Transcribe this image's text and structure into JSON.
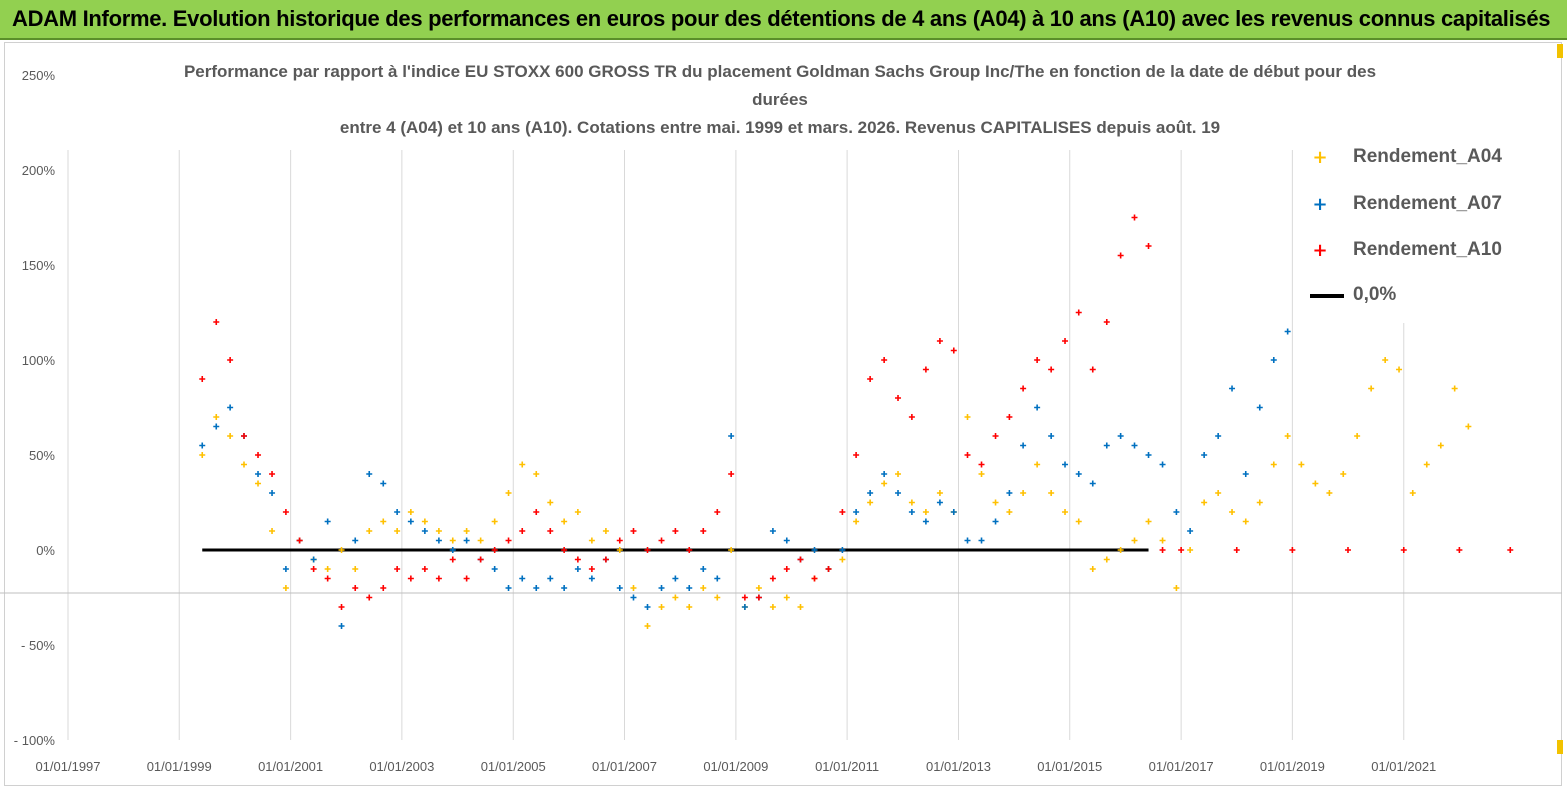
{
  "banner": {
    "title": "ADAM Informe. Evolution historique des performances en euros pour des détentions de 4 ans (A04) à 10 ans (A10) avec les revenus connus capitalisés",
    "color": "#92d050"
  },
  "chart_data": {
    "type": "scatter",
    "title_lines": [
      "Performance par rapport à l'indice EU STOXX 600 GROSS TR  du placement Goldman Sachs Group Inc/The en fonction de la date de début pour des",
      "durées",
      "entre 4 (A04) et 10 ans (A10). Cotations entre mai. 1999 et mars. 2026. Revenus CAPITALISES depuis août. 19"
    ],
    "x_tick_labels": [
      "01/01/1997",
      "01/01/1999",
      "01/01/2001",
      "01/01/2003",
      "01/01/2005",
      "01/01/2007",
      "01/01/2009",
      "01/01/2011",
      "01/01/2013",
      "01/01/2015",
      "01/01/2017",
      "01/01/2019",
      "01/01/2021"
    ],
    "y_tick_labels": [
      "250%",
      "200%",
      "150%",
      "100%",
      "50%",
      "0%",
      "- 50%",
      "- 100%"
    ],
    "xlim": [
      "1997-01-01",
      "2023-01-01"
    ],
    "ylim": [
      -100,
      250
    ],
    "y_unit": "%",
    "grid": "vertical",
    "legend_position": "right",
    "series": [
      {
        "name": "Rendement_A04",
        "color": "#ffc000",
        "marker": "+",
        "points": [
          [
            "1999-06-01",
            50
          ],
          [
            "1999-09-01",
            70
          ],
          [
            "1999-12-01",
            60
          ],
          [
            "2000-03-01",
            45
          ],
          [
            "2000-06-01",
            35
          ],
          [
            "2000-09-01",
            10
          ],
          [
            "2000-12-01",
            -20
          ],
          [
            "2001-03-01",
            5
          ],
          [
            "2001-06-01",
            -5
          ],
          [
            "2001-09-01",
            -10
          ],
          [
            "2001-12-01",
            0
          ],
          [
            "2002-03-01",
            -10
          ],
          [
            "2002-06-01",
            10
          ],
          [
            "2002-09-01",
            15
          ],
          [
            "2002-12-01",
            10
          ],
          [
            "2003-03-01",
            20
          ],
          [
            "2003-06-01",
            15
          ],
          [
            "2003-09-01",
            10
          ],
          [
            "2003-12-01",
            5
          ],
          [
            "2004-03-01",
            10
          ],
          [
            "2004-06-01",
            5
          ],
          [
            "2004-09-01",
            15
          ],
          [
            "2004-12-01",
            30
          ],
          [
            "2005-03-01",
            45
          ],
          [
            "2005-06-01",
            40
          ],
          [
            "2005-09-01",
            25
          ],
          [
            "2005-12-01",
            15
          ],
          [
            "2006-03-01",
            20
          ],
          [
            "2006-06-01",
            5
          ],
          [
            "2006-09-01",
            10
          ],
          [
            "2006-12-01",
            0
          ],
          [
            "2007-03-01",
            -20
          ],
          [
            "2007-06-01",
            -40
          ],
          [
            "2007-09-01",
            -30
          ],
          [
            "2007-12-01",
            -25
          ],
          [
            "2008-03-01",
            -30
          ],
          [
            "2008-06-01",
            -20
          ],
          [
            "2008-09-01",
            -25
          ],
          [
            "2008-12-01",
            0
          ],
          [
            "2009-03-01",
            -30
          ],
          [
            "2009-06-01",
            -20
          ],
          [
            "2009-09-01",
            -30
          ],
          [
            "2009-12-01",
            -25
          ],
          [
            "2010-03-01",
            -30
          ],
          [
            "2010-06-01",
            -15
          ],
          [
            "2010-09-01",
            -10
          ],
          [
            "2010-12-01",
            -5
          ],
          [
            "2011-03-01",
            15
          ],
          [
            "2011-06-01",
            25
          ],
          [
            "2011-09-01",
            35
          ],
          [
            "2011-12-01",
            40
          ],
          [
            "2012-03-01",
            25
          ],
          [
            "2012-06-01",
            20
          ],
          [
            "2012-09-01",
            30
          ],
          [
            "2012-12-01",
            20
          ],
          [
            "2013-03-01",
            70
          ],
          [
            "2013-06-01",
            40
          ],
          [
            "2013-09-01",
            25
          ],
          [
            "2013-12-01",
            20
          ],
          [
            "2014-03-01",
            30
          ],
          [
            "2014-06-01",
            45
          ],
          [
            "2014-09-01",
            30
          ],
          [
            "2014-12-01",
            20
          ],
          [
            "2015-03-01",
            15
          ],
          [
            "2015-06-01",
            -10
          ],
          [
            "2015-09-01",
            -5
          ],
          [
            "2015-12-01",
            0
          ],
          [
            "2016-03-01",
            5
          ],
          [
            "2016-06-01",
            15
          ],
          [
            "2016-09-01",
            5
          ],
          [
            "2016-12-01",
            -20
          ],
          [
            "2017-03-01",
            0
          ],
          [
            "2017-06-01",
            25
          ],
          [
            "2017-09-01",
            30
          ],
          [
            "2017-12-01",
            20
          ],
          [
            "2018-03-01",
            15
          ],
          [
            "2018-06-01",
            25
          ],
          [
            "2018-09-01",
            45
          ],
          [
            "2018-12-01",
            60
          ],
          [
            "2019-03-01",
            45
          ],
          [
            "2019-06-01",
            35
          ],
          [
            "2019-09-01",
            30
          ],
          [
            "2019-12-01",
            40
          ],
          [
            "2020-03-01",
            60
          ],
          [
            "2020-06-01",
            85
          ],
          [
            "2020-09-01",
            100
          ],
          [
            "2020-12-01",
            95
          ],
          [
            "2021-03-01",
            30
          ],
          [
            "2021-06-01",
            45
          ],
          [
            "2021-09-01",
            55
          ],
          [
            "2021-12-01",
            85
          ],
          [
            "2022-03-01",
            65
          ]
        ]
      },
      {
        "name": "Rendement_A07",
        "color": "#0070c0",
        "marker": "+",
        "points": [
          [
            "1999-06-01",
            55
          ],
          [
            "1999-09-01",
            65
          ],
          [
            "1999-12-01",
            75
          ],
          [
            "2000-03-01",
            60
          ],
          [
            "2000-06-01",
            40
          ],
          [
            "2000-09-01",
            30
          ],
          [
            "2000-12-01",
            -10
          ],
          [
            "2001-03-01",
            5
          ],
          [
            "2001-06-01",
            -5
          ],
          [
            "2001-09-01",
            15
          ],
          [
            "2001-12-01",
            -40
          ],
          [
            "2002-03-01",
            5
          ],
          [
            "2002-06-01",
            40
          ],
          [
            "2002-09-01",
            35
          ],
          [
            "2002-12-01",
            20
          ],
          [
            "2003-03-01",
            15
          ],
          [
            "2003-06-01",
            10
          ],
          [
            "2003-09-01",
            5
          ],
          [
            "2003-12-01",
            0
          ],
          [
            "2004-03-01",
            5
          ],
          [
            "2004-06-01",
            -5
          ],
          [
            "2004-09-01",
            -10
          ],
          [
            "2004-12-01",
            -20
          ],
          [
            "2005-03-01",
            -15
          ],
          [
            "2005-06-01",
            -20
          ],
          [
            "2005-09-01",
            -15
          ],
          [
            "2005-12-01",
            -20
          ],
          [
            "2006-03-01",
            -10
          ],
          [
            "2006-06-01",
            -15
          ],
          [
            "2006-09-01",
            -5
          ],
          [
            "2006-12-01",
            -20
          ],
          [
            "2007-03-01",
            -25
          ],
          [
            "2007-06-01",
            -30
          ],
          [
            "2007-09-01",
            -20
          ],
          [
            "2007-12-01",
            -15
          ],
          [
            "2008-03-01",
            -20
          ],
          [
            "2008-06-01",
            -10
          ],
          [
            "2008-09-01",
            -15
          ],
          [
            "2008-12-01",
            60
          ],
          [
            "2009-03-01",
            -30
          ],
          [
            "2009-06-01",
            -25
          ],
          [
            "2009-09-01",
            10
          ],
          [
            "2009-12-01",
            5
          ],
          [
            "2010-03-01",
            -5
          ],
          [
            "2010-06-01",
            0
          ],
          [
            "2010-09-01",
            -10
          ],
          [
            "2010-12-01",
            0
          ],
          [
            "2011-03-01",
            20
          ],
          [
            "2011-06-01",
            30
          ],
          [
            "2011-09-01",
            40
          ],
          [
            "2011-12-01",
            30
          ],
          [
            "2012-03-01",
            20
          ],
          [
            "2012-06-01",
            15
          ],
          [
            "2012-09-01",
            25
          ],
          [
            "2012-12-01",
            20
          ],
          [
            "2013-03-01",
            5
          ],
          [
            "2013-06-01",
            5
          ],
          [
            "2013-09-01",
            15
          ],
          [
            "2013-12-01",
            30
          ],
          [
            "2014-03-01",
            55
          ],
          [
            "2014-06-01",
            75
          ],
          [
            "2014-09-01",
            60
          ],
          [
            "2014-12-01",
            45
          ],
          [
            "2015-03-01",
            40
          ],
          [
            "2015-06-01",
            35
          ],
          [
            "2015-09-01",
            55
          ],
          [
            "2015-12-01",
            60
          ],
          [
            "2016-03-01",
            55
          ],
          [
            "2016-06-01",
            50
          ],
          [
            "2016-09-01",
            45
          ],
          [
            "2016-12-01",
            20
          ],
          [
            "2017-03-01",
            10
          ],
          [
            "2017-06-01",
            50
          ],
          [
            "2017-09-01",
            60
          ],
          [
            "2017-12-01",
            85
          ],
          [
            "2018-03-01",
            40
          ],
          [
            "2018-06-01",
            75
          ],
          [
            "2018-09-01",
            100
          ],
          [
            "2018-12-01",
            115
          ]
        ]
      },
      {
        "name": "Rendement_A10",
        "color": "#ff0000",
        "marker": "+",
        "points": [
          [
            "1999-06-01",
            90
          ],
          [
            "1999-09-01",
            120
          ],
          [
            "1999-12-01",
            100
          ],
          [
            "2000-03-01",
            60
          ],
          [
            "2000-06-01",
            50
          ],
          [
            "2000-09-01",
            40
          ],
          [
            "2000-12-01",
            20
          ],
          [
            "2001-03-01",
            5
          ],
          [
            "2001-06-01",
            -10
          ],
          [
            "2001-09-01",
            -15
          ],
          [
            "2001-12-01",
            -30
          ],
          [
            "2002-03-01",
            -20
          ],
          [
            "2002-06-01",
            -25
          ],
          [
            "2002-09-01",
            -20
          ],
          [
            "2002-12-01",
            -10
          ],
          [
            "2003-03-01",
            -15
          ],
          [
            "2003-06-01",
            -10
          ],
          [
            "2003-09-01",
            -15
          ],
          [
            "2003-12-01",
            -5
          ],
          [
            "2004-03-01",
            -15
          ],
          [
            "2004-06-01",
            -5
          ],
          [
            "2004-09-01",
            0
          ],
          [
            "2004-12-01",
            5
          ],
          [
            "2005-03-01",
            10
          ],
          [
            "2005-06-01",
            20
          ],
          [
            "2005-09-01",
            10
          ],
          [
            "2005-12-01",
            0
          ],
          [
            "2006-03-01",
            -5
          ],
          [
            "2006-06-01",
            -10
          ],
          [
            "2006-09-01",
            -5
          ],
          [
            "2006-12-01",
            5
          ],
          [
            "2007-03-01",
            10
          ],
          [
            "2007-06-01",
            0
          ],
          [
            "2007-09-01",
            5
          ],
          [
            "2007-12-01",
            10
          ],
          [
            "2008-03-01",
            0
          ],
          [
            "2008-06-01",
            10
          ],
          [
            "2008-09-01",
            20
          ],
          [
            "2008-12-01",
            40
          ],
          [
            "2009-03-01",
            -25
          ],
          [
            "2009-06-01",
            -25
          ],
          [
            "2009-09-01",
            -15
          ],
          [
            "2009-12-01",
            -10
          ],
          [
            "2010-03-01",
            -5
          ],
          [
            "2010-06-01",
            -15
          ],
          [
            "2010-09-01",
            -10
          ],
          [
            "2010-12-01",
            20
          ],
          [
            "2011-03-01",
            50
          ],
          [
            "2011-06-01",
            90
          ],
          [
            "2011-09-01",
            100
          ],
          [
            "2011-12-01",
            80
          ],
          [
            "2012-03-01",
            70
          ],
          [
            "2012-06-01",
            95
          ],
          [
            "2012-09-01",
            110
          ],
          [
            "2012-12-01",
            105
          ],
          [
            "2013-03-01",
            50
          ],
          [
            "2013-06-01",
            45
          ],
          [
            "2013-09-01",
            60
          ],
          [
            "2013-12-01",
            70
          ],
          [
            "2014-03-01",
            85
          ],
          [
            "2014-06-01",
            100
          ],
          [
            "2014-09-01",
            95
          ],
          [
            "2014-12-01",
            110
          ],
          [
            "2015-03-01",
            125
          ],
          [
            "2015-06-01",
            95
          ],
          [
            "2015-09-01",
            120
          ],
          [
            "2015-12-01",
            155
          ],
          [
            "2016-03-01",
            175
          ],
          [
            "2016-06-01",
            160
          ],
          [
            "2016-09-01",
            0
          ],
          [
            "2017-01-01",
            0
          ],
          [
            "2018-01-01",
            0
          ],
          [
            "2019-01-01",
            0
          ],
          [
            "2020-01-01",
            0
          ],
          [
            "2021-01-01",
            0
          ],
          [
            "2022-01-01",
            0
          ],
          [
            "2022-12-01",
            0
          ]
        ]
      }
    ],
    "reference_line": {
      "name": "0,0%",
      "value": 0,
      "x_start": "1999-06-01",
      "x_end": "2016-06-01",
      "color": "#000000"
    }
  }
}
